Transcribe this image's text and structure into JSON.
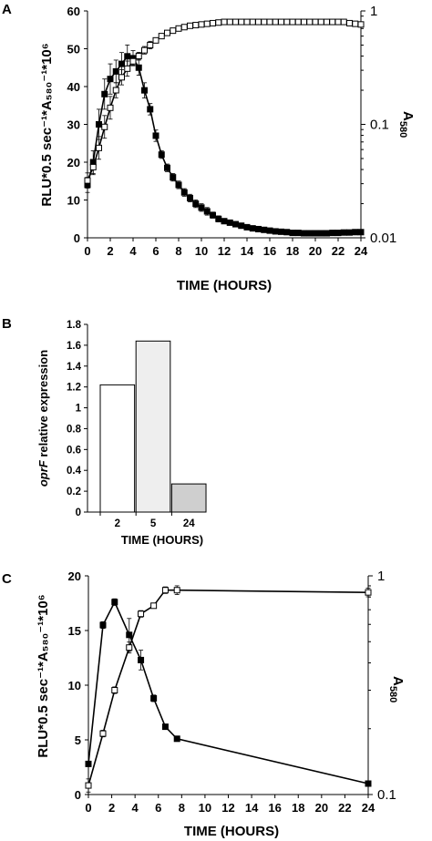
{
  "chart_data": [
    {
      "panel": "A",
      "type": "line",
      "xlabel": "TIME (HOURS)",
      "ylabel": "RLU*0.5 sec⁻¹*A₅₈₀⁻¹*10⁶",
      "y2label": "A580",
      "xlim": [
        0,
        24
      ],
      "ylim": [
        0,
        60
      ],
      "y2lim": [
        0.01,
        1
      ],
      "y2_scale": "log",
      "x_ticks": [
        "0",
        "2",
        "4",
        "6",
        "8",
        "10",
        "12",
        "14",
        "16",
        "18",
        "20",
        "22",
        "24"
      ],
      "y_ticks": [
        "0",
        "10",
        "20",
        "30",
        "40",
        "50",
        "60"
      ],
      "y2_ticks": [
        "0.01",
        "0.1",
        "1"
      ],
      "series": [
        {
          "marker": "filled-square",
          "axis": "left",
          "x": [
            0,
            0.5,
            1,
            1.5,
            2,
            2.5,
            3,
            3.5,
            4,
            4.5,
            5,
            5.5,
            6,
            6.5,
            7,
            7.5,
            8,
            8.5,
            9,
            9.5,
            10,
            10.5,
            11,
            11.5,
            12,
            12.5,
            13,
            13.5,
            14,
            14.5,
            15,
            15.5,
            16,
            16.5,
            17,
            17.5,
            18,
            18.5,
            19,
            19.5,
            20,
            20.5,
            21,
            21.5,
            22,
            22.5,
            23,
            23.5,
            24
          ],
          "y": [
            14,
            20,
            30,
            38,
            42,
            44,
            46,
            48,
            47.5,
            45,
            39,
            34,
            27,
            22,
            18.5,
            16,
            14,
            12,
            10.5,
            9,
            8,
            7,
            6,
            5,
            4.4,
            4,
            3.6,
            3.2,
            2.8,
            2.5,
            2.3,
            2.1,
            1.9,
            1.7,
            1.6,
            1.5,
            1.3,
            1.3,
            1.2,
            1.2,
            1.2,
            1.2,
            1.2,
            1.3,
            1.3,
            1.4,
            1.4,
            1.5,
            1.5
          ],
          "err": [
            2,
            3,
            4,
            4,
            4,
            3,
            3,
            3,
            2,
            2,
            2,
            1.5,
            1.5,
            1,
            1,
            1,
            1,
            1,
            1,
            1,
            1,
            1,
            0.8,
            0.8,
            0.5,
            0.5,
            0.5,
            0.5,
            0.5,
            0.5,
            0.5,
            0.5,
            0.5,
            0.5,
            0.5,
            0.5,
            0.5,
            0.5,
            0.5,
            0.5,
            0.5,
            0.5,
            0.5,
            0.5,
            0.5,
            0.5,
            0.5,
            0.5,
            0.5
          ]
        },
        {
          "marker": "open-square",
          "axis": "right",
          "x": [
            0,
            0.5,
            1,
            1.5,
            2,
            2.5,
            3,
            3.5,
            4,
            4.5,
            5,
            5.5,
            6,
            6.5,
            7,
            7.5,
            8,
            8.5,
            9,
            9.5,
            10,
            10.5,
            11,
            11.5,
            12,
            12.5,
            13,
            13.5,
            14,
            14.5,
            15,
            15.5,
            16,
            16.5,
            17,
            17.5,
            18,
            18.5,
            19,
            19.5,
            20,
            20.5,
            21,
            21.5,
            22,
            22.5,
            23,
            23.5,
            24
          ],
          "y": [
            0.032,
            0.042,
            0.062,
            0.095,
            0.14,
            0.2,
            0.26,
            0.31,
            0.36,
            0.4,
            0.45,
            0.5,
            0.55,
            0.6,
            0.64,
            0.67,
            0.7,
            0.72,
            0.74,
            0.75,
            0.76,
            0.77,
            0.78,
            0.79,
            0.8,
            0.8,
            0.8,
            0.8,
            0.8,
            0.8,
            0.8,
            0.8,
            0.8,
            0.8,
            0.8,
            0.8,
            0.8,
            0.8,
            0.8,
            0.8,
            0.8,
            0.8,
            0.8,
            0.8,
            0.8,
            0.8,
            0.78,
            0.77,
            0.76
          ],
          "err_left_units": [
            2,
            2,
            3,
            3,
            3,
            2,
            2,
            2,
            1,
            1,
            1,
            1,
            0.5,
            0.5,
            0.5,
            0.5,
            0.5,
            0.5,
            0.5,
            0.5,
            0.5,
            0.5,
            0.5,
            0.5,
            0.5,
            0.5,
            0.5,
            0.5,
            0.5,
            0.5,
            0.5,
            0.5,
            0.5,
            0.5,
            0.5,
            0.5,
            0.5,
            0.5,
            0.5,
            0.5,
            0.5,
            0.5,
            0.5,
            0.5,
            0.5,
            0.5,
            0.5,
            0.5,
            0.5
          ]
        }
      ]
    },
    {
      "panel": "B",
      "type": "bar",
      "xlabel": "TIME (HOURS)",
      "ylabel_italic": "oprF",
      "ylabel_rest": " relative expression",
      "categories": [
        "2",
        "5",
        "24"
      ],
      "values": [
        1.22,
        1.64,
        0.27
      ],
      "bar_colors": [
        "#ffffff",
        "#eeeeee",
        "#cfcfcf"
      ],
      "ylim": [
        0,
        1.8
      ],
      "y_ticks": [
        "0",
        "0.2",
        "0.4",
        "0.6",
        "0.8",
        "1",
        "1.2",
        "1.4",
        "1.6",
        "1.8"
      ]
    },
    {
      "panel": "C",
      "type": "line",
      "xlabel": "TIME (HOURS)",
      "ylabel": "RLU*0.5 sec⁻¹*A₅₈₀⁻¹*10⁶",
      "y2label": "A580",
      "xlim": [
        0,
        24
      ],
      "ylim": [
        0,
        20
      ],
      "y2lim": [
        0.1,
        1
      ],
      "y2_scale": "log",
      "x_ticks": [
        "0",
        "2",
        "4",
        "6",
        "8",
        "10",
        "12",
        "14",
        "16",
        "18",
        "20",
        "22",
        "24"
      ],
      "y_ticks": [
        "0",
        "5",
        "10",
        "15",
        "20"
      ],
      "y2_ticks": [
        "0.1",
        "1"
      ],
      "series": [
        {
          "marker": "filled-square",
          "axis": "left",
          "x": [
            0,
            1.25,
            2.25,
            3.5,
            4.5,
            5.6,
            6.6,
            7.6,
            24
          ],
          "y": [
            2.8,
            15.5,
            17.6,
            14.6,
            12.3,
            8.8,
            6.2,
            5.1,
            1.0
          ],
          "err": [
            0.2,
            0.3,
            0.3,
            1.5,
            0.9,
            0.3,
            0.2,
            0.2,
            0.2
          ]
        },
        {
          "marker": "open-square",
          "axis": "right",
          "x": [
            0,
            1.25,
            2.25,
            3.5,
            4.5,
            5.6,
            6.6,
            7.6,
            24
          ],
          "y": [
            0.11,
            0.19,
            0.3,
            0.47,
            0.67,
            0.73,
            0.86,
            0.86,
            0.84
          ],
          "err_left_units": [
            0.6,
            0.3,
            0.3,
            0.5,
            0.3,
            0.2,
            0.3,
            0.4,
            0.4
          ]
        }
      ]
    }
  ]
}
